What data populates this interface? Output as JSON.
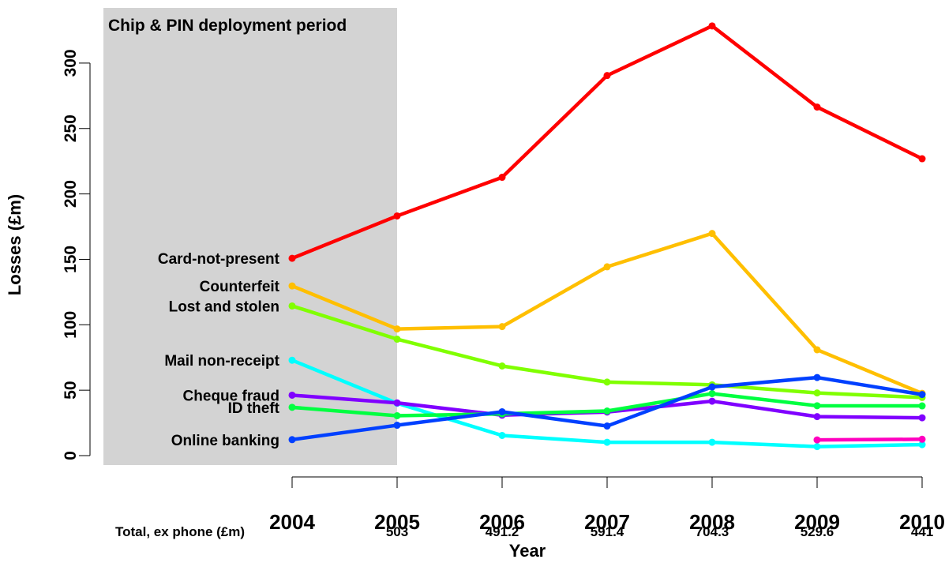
{
  "chart_data": {
    "type": "line",
    "title": "",
    "xlabel": "Year",
    "ylabel": "Losses (£m)",
    "x": [
      2004,
      2005,
      2006,
      2007,
      2008,
      2009,
      2010
    ],
    "x_tick_labels": [
      "2004",
      "2005",
      "2006",
      "2007",
      "2008",
      "2009",
      "2010"
    ],
    "y_ticks": [
      0,
      50,
      100,
      150,
      200,
      250,
      300
    ],
    "y_tick_labels": [
      "0",
      "50",
      "100",
      "150",
      "200",
      "250",
      "300"
    ],
    "ylim": [
      -15,
      330
    ],
    "grid": false,
    "shaded_region": {
      "label": "Chip & PIN deployment period",
      "x_end": 2005,
      "color": "#d3d3d3"
    },
    "totals": {
      "label": "Total, ex phone (£m)",
      "values": [
        null,
        "503",
        "491.2",
        "591.4",
        "704.3",
        "529.6",
        "441"
      ]
    },
    "series": [
      {
        "name": "Card-not-present",
        "color": "#ff0000",
        "values": [
          150.8,
          183.2,
          212.7,
          290.5,
          328.4,
          266.4,
          226.9
        ]
      },
      {
        "name": "Counterfeit",
        "color": "#ffbf00",
        "values": [
          129.7,
          96.8,
          98.6,
          144.3,
          169.8,
          80.9,
          47.6
        ]
      },
      {
        "name": "Lost and stolen",
        "color": "#80ff00",
        "values": [
          114.4,
          89.0,
          68.5,
          56.2,
          54.1,
          47.9,
          44.4
        ]
      },
      {
        "name": "Mail non-receipt",
        "color": "#00ffff",
        "values": [
          72.9,
          40.0,
          15.4,
          10.2,
          10.2,
          6.9,
          8.4
        ]
      },
      {
        "name": "Cheque fraud",
        "color": "#8000ff",
        "values": [
          46.2,
          40.3,
          30.9,
          33.3,
          41.6,
          29.8,
          28.9
        ]
      },
      {
        "name": "ID theft",
        "color": "#00ff40",
        "values": [
          36.9,
          30.5,
          31.9,
          34.1,
          47.4,
          38.1,
          38.0
        ]
      },
      {
        "name": "Online banking",
        "color": "#0040ff",
        "values": [
          12.2,
          23.2,
          33.5,
          22.6,
          52.5,
          59.7,
          46.7
        ]
      },
      {
        "name": "",
        "color": "#ff00bf",
        "values": [
          null,
          null,
          null,
          null,
          null,
          12.0,
          12.5
        ]
      }
    ]
  }
}
